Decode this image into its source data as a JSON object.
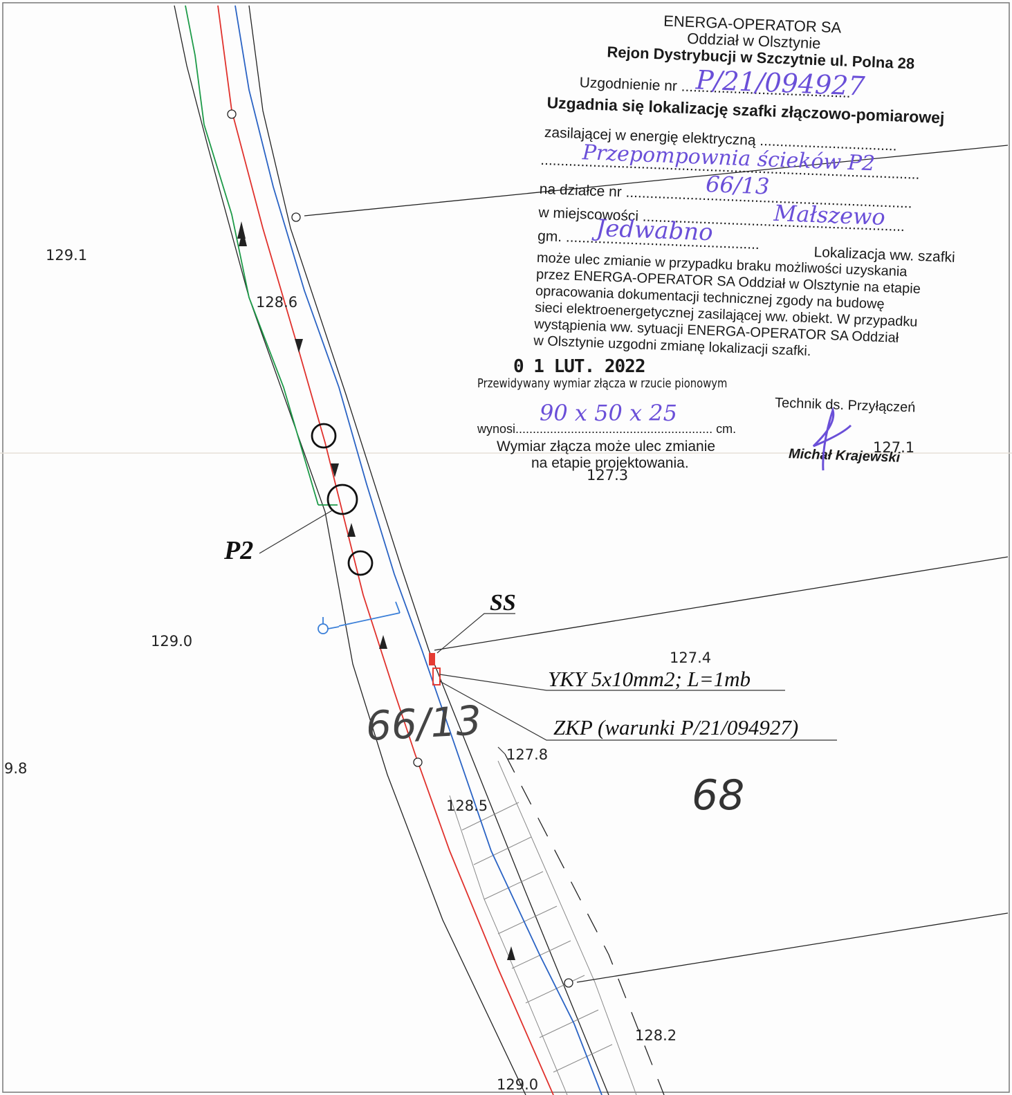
{
  "elevations": [
    "129.1",
    "128.6",
    "129.0",
    "9.8",
    "127.4",
    "127.8",
    "128.5",
    "128.2",
    "129.0",
    "127.1",
    "127.3"
  ],
  "parcel_numbers": {
    "main": "66/13",
    "neighbor": "68"
  },
  "labels": {
    "p2": "P2",
    "ss": "SS",
    "cable": "YKY 5x10mm2; L=1mb",
    "zkp": "ZKP (warunki P/21/094927)"
  },
  "stamp": {
    "company": "ENERGA-OPERATOR SA",
    "branch": "Oddział w Olsztynie",
    "district": "Rejon Dystrybucji w Szczytnie ul. Polna 28",
    "agreement_label": "Uzgodnienie nr",
    "agreement_no": "P/21/094927",
    "agree_line": "Uzgadnia się lokalizację szafki złączowo-pomiarowej",
    "supply_label": "zasilającej w energię elektryczną",
    "supply_value": "Przepompownia ścieków P2",
    "parcel_label": "na działce nr",
    "parcel_value": "66/13",
    "locality_label": "w miejscowości",
    "locality_value": "Małszewo",
    "gm_label": "gm.",
    "gm_value": "Jedwabno",
    "note": [
      "Lokalizacja ww. szafki",
      "może ulec zmianie w przypadku braku możliwości uzyskania",
      "przez ENERGA-OPERATOR SA Oddział w Olsztynie na etapie",
      "opracowania dokumentacji technicznej zgody na budowę",
      "sieci elektroenergetycznej zasilającej ww. obiekt. W przypadku",
      "wystąpienia ww. sytuacji ENERGA-OPERATOR SA Oddział",
      "w Olsztynie uzgodni zmianę lokalizacji szafki."
    ],
    "date": "0 1 LUT. 2022",
    "predicted": "Przewidywany wymiar złącza w rzucie pionowym",
    "wynosi_label": "wynosi",
    "wynosi_value": "90 x 50 x 25",
    "cm": "cm.",
    "change_note": [
      "Wymiar złącza może ulec zmianie",
      "na etapie projektowania."
    ],
    "role": "Technik ds. Przyłączeń",
    "name": "Michał Krajewski"
  },
  "colors": {
    "red": "#e0312c",
    "blue": "#2a63c4",
    "green": "#1d9a48",
    "marker": "#e53b33",
    "ink": "#6a4fd8",
    "hydrant": "#3a7fd8"
  }
}
